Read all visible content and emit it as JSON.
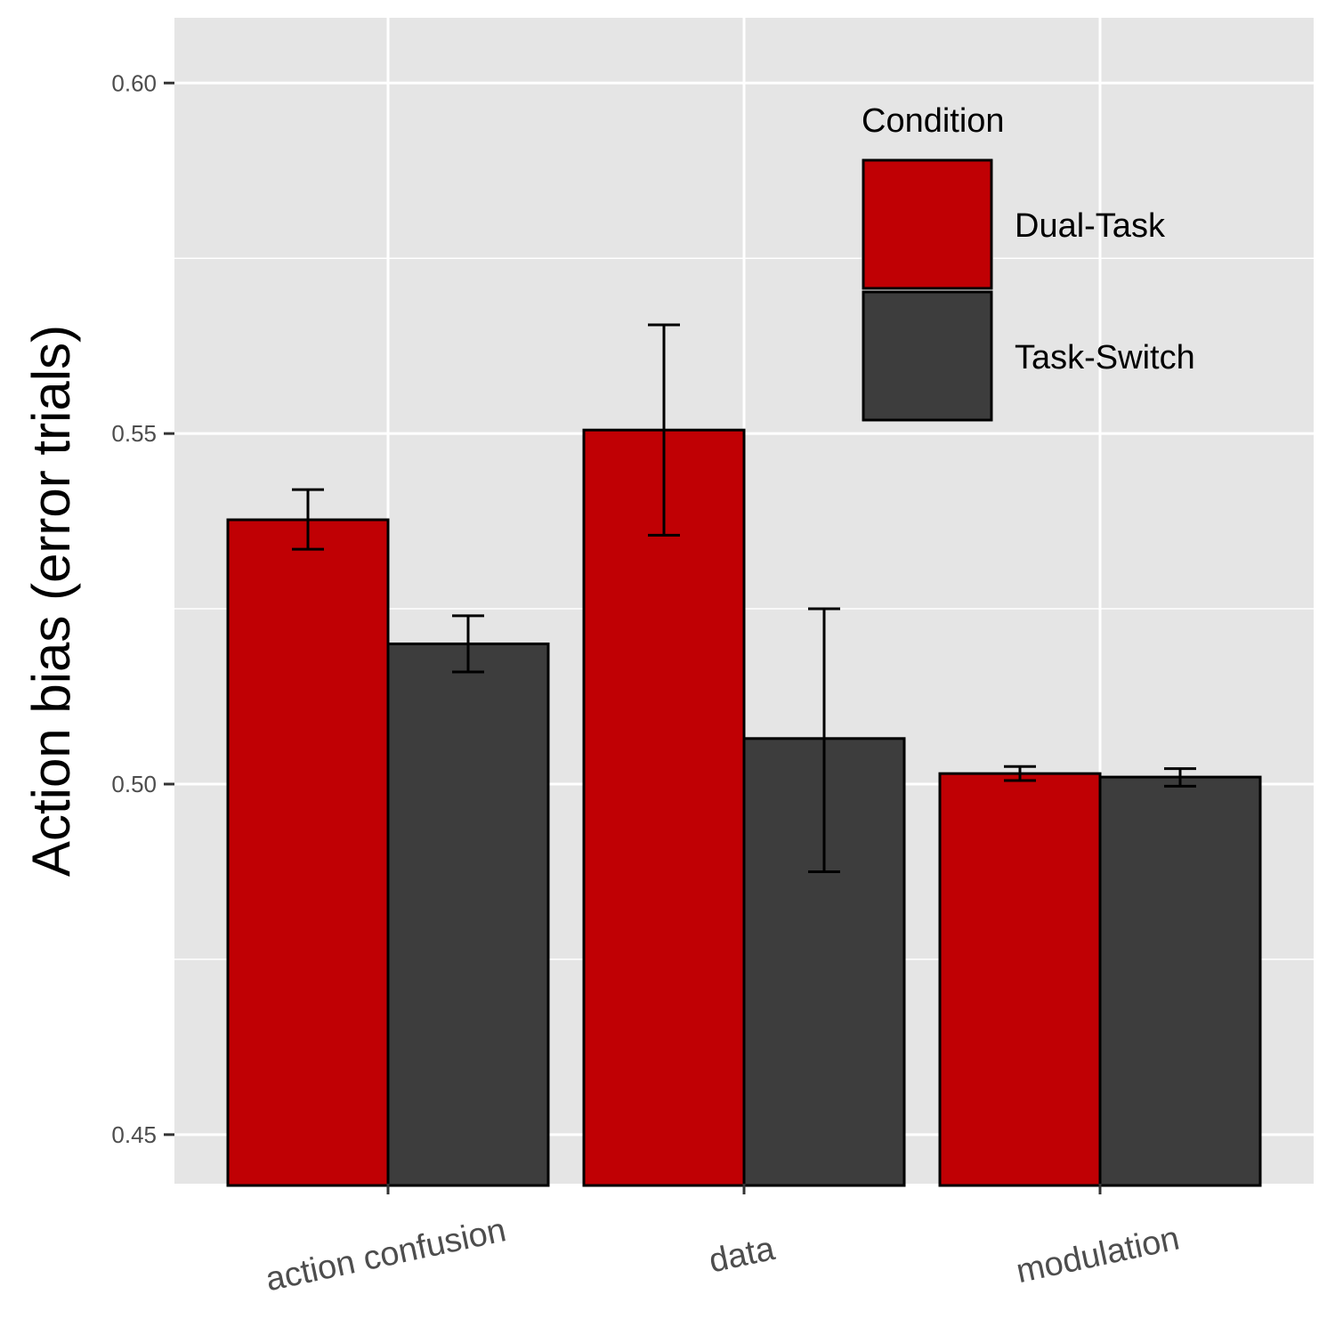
{
  "chart_data": {
    "type": "bar",
    "categories": [
      "action confusion",
      "data",
      "modulation"
    ],
    "series": [
      {
        "name": "Dual-Task",
        "color": "#c00004",
        "values": [
          0.5377,
          0.5505,
          0.5015
        ],
        "error": [
          [
            0.5335,
            0.542
          ],
          [
            0.5355,
            0.5655
          ],
          [
            0.5005,
            0.5025
          ]
        ]
      },
      {
        "name": "Task-Switch",
        "color": "#3d3d3d",
        "values": [
          0.52,
          0.5065,
          0.501
        ],
        "error": [
          [
            0.516,
            0.524
          ],
          [
            0.4875,
            0.525
          ],
          [
            0.4997,
            0.5022
          ]
        ]
      }
    ],
    "xlabel": "",
    "ylabel": "Action bias (error trials)",
    "ylim": [
      0.443,
      0.6093
    ],
    "yticks": [
      "0.45",
      "0.50",
      "0.55",
      "0.60"
    ],
    "ytick_values": [
      0.45,
      0.5,
      0.55,
      0.6
    ],
    "legend": {
      "title": "Condition",
      "position": "top-right"
    },
    "grid": true,
    "background": "#e5e5e5"
  }
}
